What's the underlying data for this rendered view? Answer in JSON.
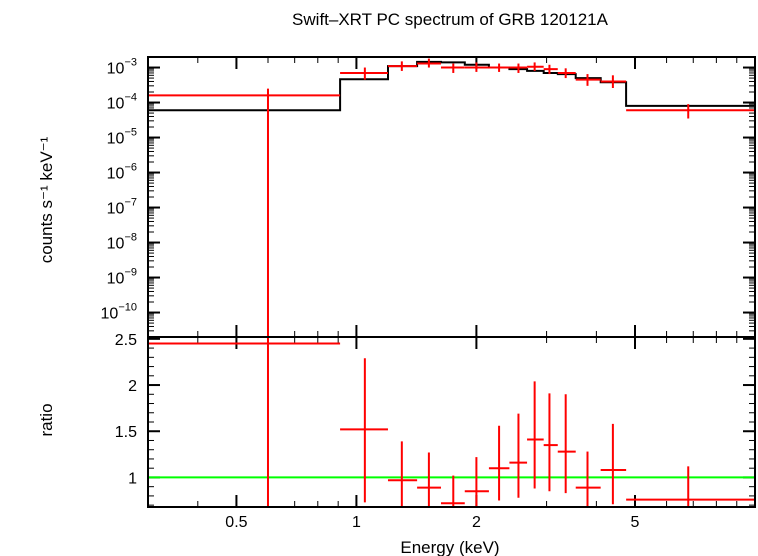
{
  "chart_data": {
    "title": "Swift–XRT PC spectrum of GRB 120121A",
    "xlabel": "Energy (keV)",
    "x_scale": "log",
    "xlim": [
      0.3,
      10
    ],
    "x_ticks": [
      {
        "value": 0.5,
        "label": "0.5"
      },
      {
        "value": 1,
        "label": "1"
      },
      {
        "value": 2,
        "label": "2"
      },
      {
        "value": 5,
        "label": "5"
      }
    ],
    "panels": [
      {
        "type": "scatter",
        "name": "spectrum",
        "ylabel": "counts s⁻¹ keV⁻¹",
        "y_scale": "log",
        "ylim": [
          2e-11,
          0.002
        ],
        "y_ticks": [
          {
            "value": 0.001,
            "base": "10",
            "exp": "−3"
          },
          {
            "value": 0.0001,
            "base": "10",
            "exp": "−4"
          },
          {
            "value": 1e-05,
            "base": "10",
            "exp": "−5"
          },
          {
            "value": 1e-06,
            "base": "10",
            "exp": "−6"
          },
          {
            "value": 1e-07,
            "base": "10",
            "exp": "−7"
          },
          {
            "value": 1e-08,
            "base": "10",
            "exp": "−8"
          },
          {
            "value": 1e-09,
            "base": "10",
            "exp": "−9"
          },
          {
            "value": 1e-10,
            "base": "10",
            "exp": "−10"
          }
        ],
        "data": [
          {
            "x": 0.6,
            "xlo": 0.3,
            "xhi": 0.91,
            "y": 0.00016,
            "ylo": 1e-12,
            "yhi": 0.00025
          },
          {
            "x": 1.05,
            "xlo": 0.91,
            "xhi": 1.2,
            "y": 0.0007,
            "ylo": 0.00045,
            "yhi": 0.001
          },
          {
            "x": 1.3,
            "xlo": 1.2,
            "xhi": 1.42,
            "y": 0.0011,
            "ylo": 0.0008,
            "yhi": 0.0015
          },
          {
            "x": 1.52,
            "xlo": 1.42,
            "xhi": 1.63,
            "y": 0.0013,
            "ylo": 0.001,
            "yhi": 0.0018
          },
          {
            "x": 1.75,
            "xlo": 1.63,
            "xhi": 1.87,
            "y": 0.001,
            "ylo": 0.0007,
            "yhi": 0.0013
          },
          {
            "x": 2.0,
            "xlo": 1.87,
            "xhi": 2.15,
            "y": 0.001,
            "ylo": 0.00075,
            "yhi": 0.0014
          },
          {
            "x": 2.28,
            "xlo": 2.15,
            "xhi": 2.42,
            "y": 0.001,
            "ylo": 0.00075,
            "yhi": 0.0013
          },
          {
            "x": 2.55,
            "xlo": 2.42,
            "xhi": 2.68,
            "y": 0.001,
            "ylo": 0.0007,
            "yhi": 0.0013
          },
          {
            "x": 2.8,
            "xlo": 2.68,
            "xhi": 2.95,
            "y": 0.00105,
            "ylo": 0.0008,
            "yhi": 0.0014
          },
          {
            "x": 3.05,
            "xlo": 2.95,
            "xhi": 3.2,
            "y": 0.0009,
            "ylo": 0.00065,
            "yhi": 0.0012
          },
          {
            "x": 3.35,
            "xlo": 3.2,
            "xhi": 3.55,
            "y": 0.0007,
            "ylo": 0.0005,
            "yhi": 0.00095
          },
          {
            "x": 3.8,
            "xlo": 3.55,
            "xhi": 4.1,
            "y": 0.00045,
            "ylo": 0.0003,
            "yhi": 0.00065
          },
          {
            "x": 4.4,
            "xlo": 4.1,
            "xhi": 4.75,
            "y": 0.0004,
            "ylo": 0.00026,
            "yhi": 0.0006
          },
          {
            "x": 6.8,
            "xlo": 4.75,
            "xhi": 10.0,
            "y": 6e-05,
            "ylo": 3.5e-05,
            "yhi": 9e-05
          }
        ],
        "model": [
          {
            "xlo": 0.3,
            "xhi": 0.91,
            "y": 6e-05
          },
          {
            "xlo": 0.91,
            "xhi": 1.2,
            "y": 0.00046
          },
          {
            "xlo": 1.2,
            "xhi": 1.42,
            "y": 0.0011
          },
          {
            "xlo": 1.42,
            "xhi": 1.63,
            "y": 0.00145
          },
          {
            "xlo": 1.63,
            "xhi": 1.87,
            "y": 0.0014
          },
          {
            "xlo": 1.87,
            "xhi": 2.15,
            "y": 0.0012
          },
          {
            "xlo": 2.15,
            "xhi": 2.42,
            "y": 0.001
          },
          {
            "xlo": 2.42,
            "xhi": 2.68,
            "y": 0.0009
          },
          {
            "xlo": 2.68,
            "xhi": 2.95,
            "y": 0.0008
          },
          {
            "xlo": 2.95,
            "xhi": 3.2,
            "y": 0.0007
          },
          {
            "xlo": 3.2,
            "xhi": 3.55,
            "y": 0.00065
          },
          {
            "xlo": 3.55,
            "xhi": 4.1,
            "y": 0.0005
          },
          {
            "xlo": 4.1,
            "xhi": 4.75,
            "y": 0.00038
          },
          {
            "xlo": 4.75,
            "xhi": 10.0,
            "y": 8e-05
          }
        ]
      },
      {
        "type": "scatter",
        "name": "ratio",
        "ylabel": "ratio",
        "y_scale": "linear",
        "ylim": [
          0.68,
          2.52
        ],
        "y_ticks": [
          {
            "value": 1,
            "label": "1"
          },
          {
            "value": 1.5,
            "label": "1.5"
          },
          {
            "value": 2,
            "label": "2"
          },
          {
            "value": 2.5,
            "label": "2.5"
          }
        ],
        "reference_line": 1,
        "data": [
          {
            "x": 0.6,
            "xlo": 0.3,
            "xhi": 0.91,
            "y": 2.45,
            "ylo": 0.68,
            "yhi": 2.55
          },
          {
            "x": 1.05,
            "xlo": 0.91,
            "xhi": 1.2,
            "y": 1.52,
            "ylo": 0.73,
            "yhi": 2.29
          },
          {
            "x": 1.3,
            "xlo": 1.2,
            "xhi": 1.42,
            "y": 0.97,
            "ylo": 0.68,
            "yhi": 1.39
          },
          {
            "x": 1.52,
            "xlo": 1.42,
            "xhi": 1.63,
            "y": 0.89,
            "ylo": 0.68,
            "yhi": 1.27
          },
          {
            "x": 1.75,
            "xlo": 1.63,
            "xhi": 1.87,
            "y": 0.72,
            "ylo": 0.68,
            "yhi": 1.02
          },
          {
            "x": 2.0,
            "xlo": 1.87,
            "xhi": 2.15,
            "y": 0.85,
            "ylo": 0.68,
            "yhi": 1.22
          },
          {
            "x": 2.28,
            "xlo": 2.15,
            "xhi": 2.42,
            "y": 1.1,
            "ylo": 0.75,
            "yhi": 1.56
          },
          {
            "x": 2.55,
            "xlo": 2.42,
            "xhi": 2.68,
            "y": 1.16,
            "ylo": 0.78,
            "yhi": 1.69
          },
          {
            "x": 2.8,
            "xlo": 2.68,
            "xhi": 2.95,
            "y": 1.41,
            "ylo": 0.88,
            "yhi": 2.04
          },
          {
            "x": 3.05,
            "xlo": 2.95,
            "xhi": 3.2,
            "y": 1.35,
            "ylo": 0.85,
            "yhi": 1.91
          },
          {
            "x": 3.35,
            "xlo": 3.2,
            "xhi": 3.55,
            "y": 1.28,
            "ylo": 0.83,
            "yhi": 1.9
          },
          {
            "x": 3.8,
            "xlo": 3.55,
            "xhi": 4.1,
            "y": 0.89,
            "ylo": 0.68,
            "yhi": 1.28
          },
          {
            "x": 4.4,
            "xlo": 4.1,
            "xhi": 4.75,
            "y": 1.08,
            "ylo": 0.71,
            "yhi": 1.58
          },
          {
            "x": 6.8,
            "xlo": 4.75,
            "xhi": 10.0,
            "y": 0.76,
            "ylo": 0.68,
            "yhi": 1.12
          }
        ]
      }
    ],
    "colors": {
      "data": "#ff0000",
      "model": "#000000",
      "reference": "#00ff00"
    }
  }
}
